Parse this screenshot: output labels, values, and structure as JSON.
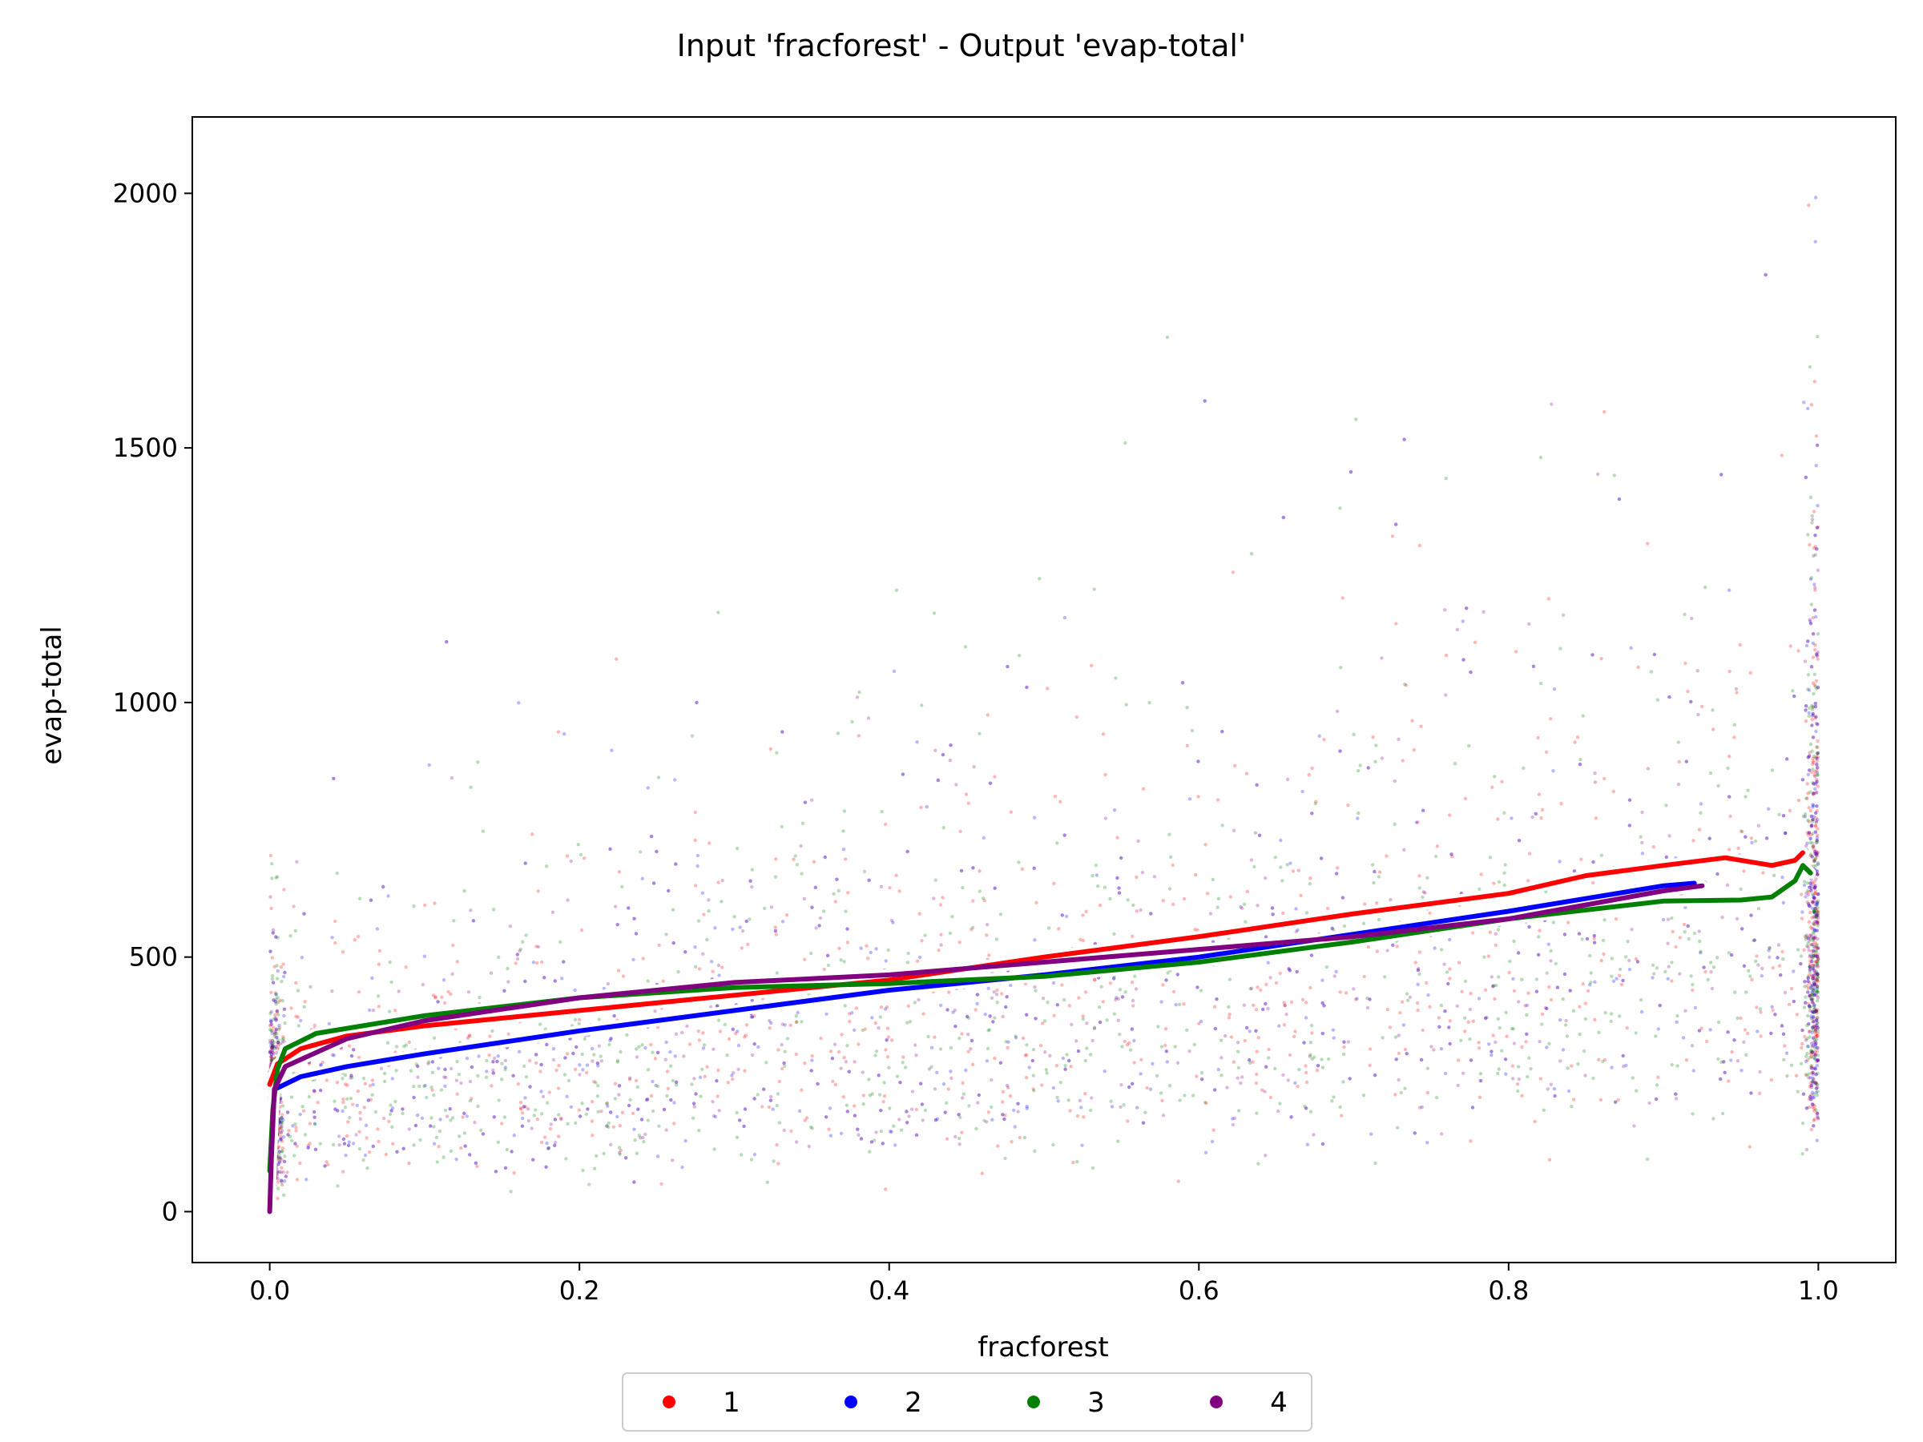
{
  "chart_data": {
    "type": "scatter",
    "title": "Input 'fracforest' - Output 'evap-total'",
    "xlabel": "fracforest",
    "ylabel": "evap-total",
    "xlim": [
      -0.05,
      1.05
    ],
    "ylim": [
      -100,
      2150
    ],
    "xticks": [
      0.0,
      0.2,
      0.4,
      0.6,
      0.8,
      1.0
    ],
    "xtick_labels": [
      "0.0",
      "0.2",
      "0.4",
      "0.6",
      "0.8",
      "1.0"
    ],
    "yticks": [
      0,
      500,
      1000,
      1500,
      2000
    ],
    "ytick_labels": [
      "0",
      "500",
      "1000",
      "1500",
      "2000"
    ],
    "grid": false,
    "legend": {
      "placement": "bottom-center-outside",
      "columns": 4
    },
    "series": [
      {
        "name": "1",
        "color": "#ff0000",
        "trend": [
          [
            0.0,
            250
          ],
          [
            0.005,
            290
          ],
          [
            0.02,
            320
          ],
          [
            0.05,
            345
          ],
          [
            0.1,
            365
          ],
          [
            0.2,
            395
          ],
          [
            0.3,
            425
          ],
          [
            0.4,
            455
          ],
          [
            0.5,
            500
          ],
          [
            0.6,
            540
          ],
          [
            0.7,
            585
          ],
          [
            0.8,
            625
          ],
          [
            0.85,
            660
          ],
          [
            0.9,
            680
          ],
          [
            0.94,
            695
          ],
          [
            0.97,
            680
          ],
          [
            0.985,
            690
          ],
          [
            0.99,
            705
          ]
        ]
      },
      {
        "name": "2",
        "color": "#0000ff",
        "trend": [
          [
            0.003,
            240
          ],
          [
            0.02,
            265
          ],
          [
            0.05,
            285
          ],
          [
            0.1,
            310
          ],
          [
            0.2,
            355
          ],
          [
            0.3,
            395
          ],
          [
            0.4,
            435
          ],
          [
            0.5,
            465
          ],
          [
            0.6,
            500
          ],
          [
            0.7,
            545
          ],
          [
            0.8,
            590
          ],
          [
            0.85,
            615
          ],
          [
            0.9,
            640
          ],
          [
            0.92,
            645
          ]
        ]
      },
      {
        "name": "3",
        "color": "#008000",
        "trend": [
          [
            0.0,
            80
          ],
          [
            0.002,
            200
          ],
          [
            0.005,
            280
          ],
          [
            0.01,
            320
          ],
          [
            0.03,
            350
          ],
          [
            0.1,
            385
          ],
          [
            0.2,
            420
          ],
          [
            0.3,
            440
          ],
          [
            0.4,
            448
          ],
          [
            0.5,
            462
          ],
          [
            0.6,
            490
          ],
          [
            0.7,
            530
          ],
          [
            0.8,
            575
          ],
          [
            0.9,
            610
          ],
          [
            0.95,
            612
          ],
          [
            0.97,
            618
          ],
          [
            0.985,
            650
          ],
          [
            0.99,
            680
          ],
          [
            0.995,
            665
          ]
        ]
      },
      {
        "name": "4",
        "color": "#800080",
        "trend": [
          [
            0.0,
            0
          ],
          [
            0.001,
            100
          ],
          [
            0.003,
            240
          ],
          [
            0.01,
            285
          ],
          [
            0.05,
            340
          ],
          [
            0.1,
            375
          ],
          [
            0.2,
            420
          ],
          [
            0.3,
            450
          ],
          [
            0.4,
            465
          ],
          [
            0.5,
            490
          ],
          [
            0.6,
            515
          ],
          [
            0.7,
            540
          ],
          [
            0.8,
            575
          ],
          [
            0.9,
            630
          ],
          [
            0.925,
            640
          ]
        ]
      }
    ]
  }
}
